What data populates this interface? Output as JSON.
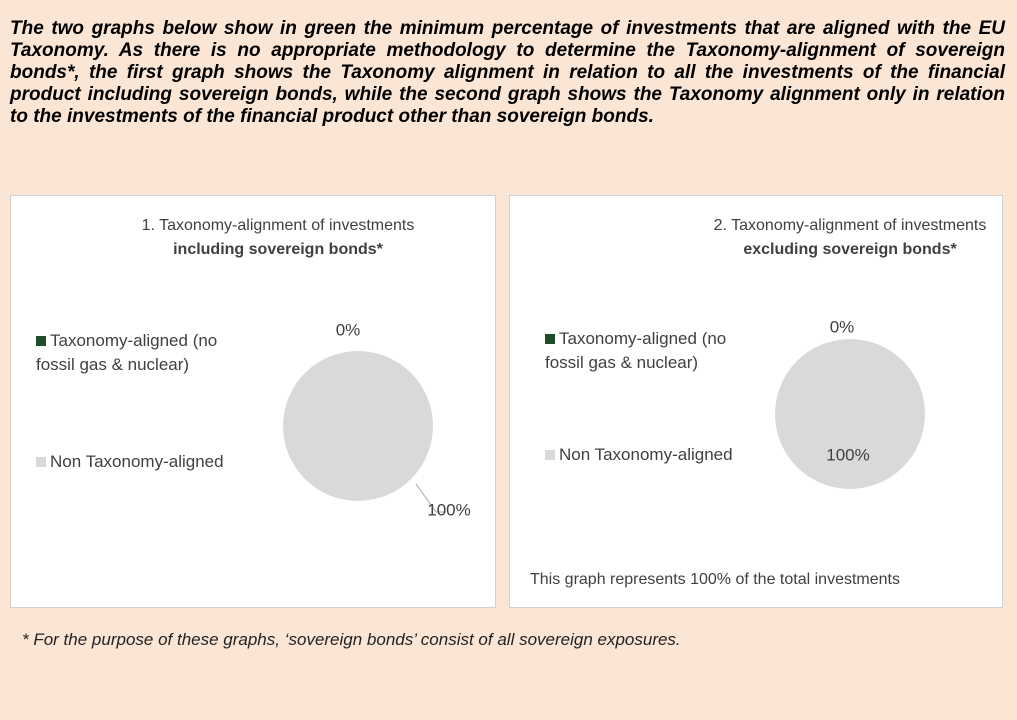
{
  "intro": "The two graphs below show in green the minimum percentage of investments that are aligned with the EU Taxonomy. As there is no appropriate methodology to determine the Taxonomy-alignment of sovereign bonds*, the first graph shows the Taxonomy alignment in relation to all the investments of the financial product including sovereign bonds, while the second graph shows the Taxonomy alignment only in relation to the investments of the financial product other than sovereign bonds.",
  "chart_data": [
    {
      "type": "pie",
      "title": "1. Taxonomy-alignment of investments",
      "subtitle": "including sovereign bonds*",
      "categories": [
        "Taxonomy-aligned (no fossil gas & nuclear)",
        "Non Taxonomy-aligned"
      ],
      "values": [
        0,
        100
      ],
      "value_labels": [
        "0%",
        "100%"
      ],
      "colors": [
        "#1e4d2b",
        "#d9d9d9"
      ]
    },
    {
      "type": "pie",
      "title": "2. Taxonomy-alignment of investments",
      "subtitle": "excluding sovereign bonds*",
      "categories": [
        "Taxonomy-aligned (no fossil gas & nuclear)",
        "Non Taxonomy-aligned"
      ],
      "values": [
        0,
        100
      ],
      "value_labels": [
        "0%",
        "100%"
      ],
      "colors": [
        "#1e4d2b",
        "#d9d9d9"
      ],
      "note": "This graph represents 100% of the total investments"
    }
  ],
  "footnote": "* For the purpose of these graphs, ‘sovereign bonds’ consist of all sovereign exposures."
}
